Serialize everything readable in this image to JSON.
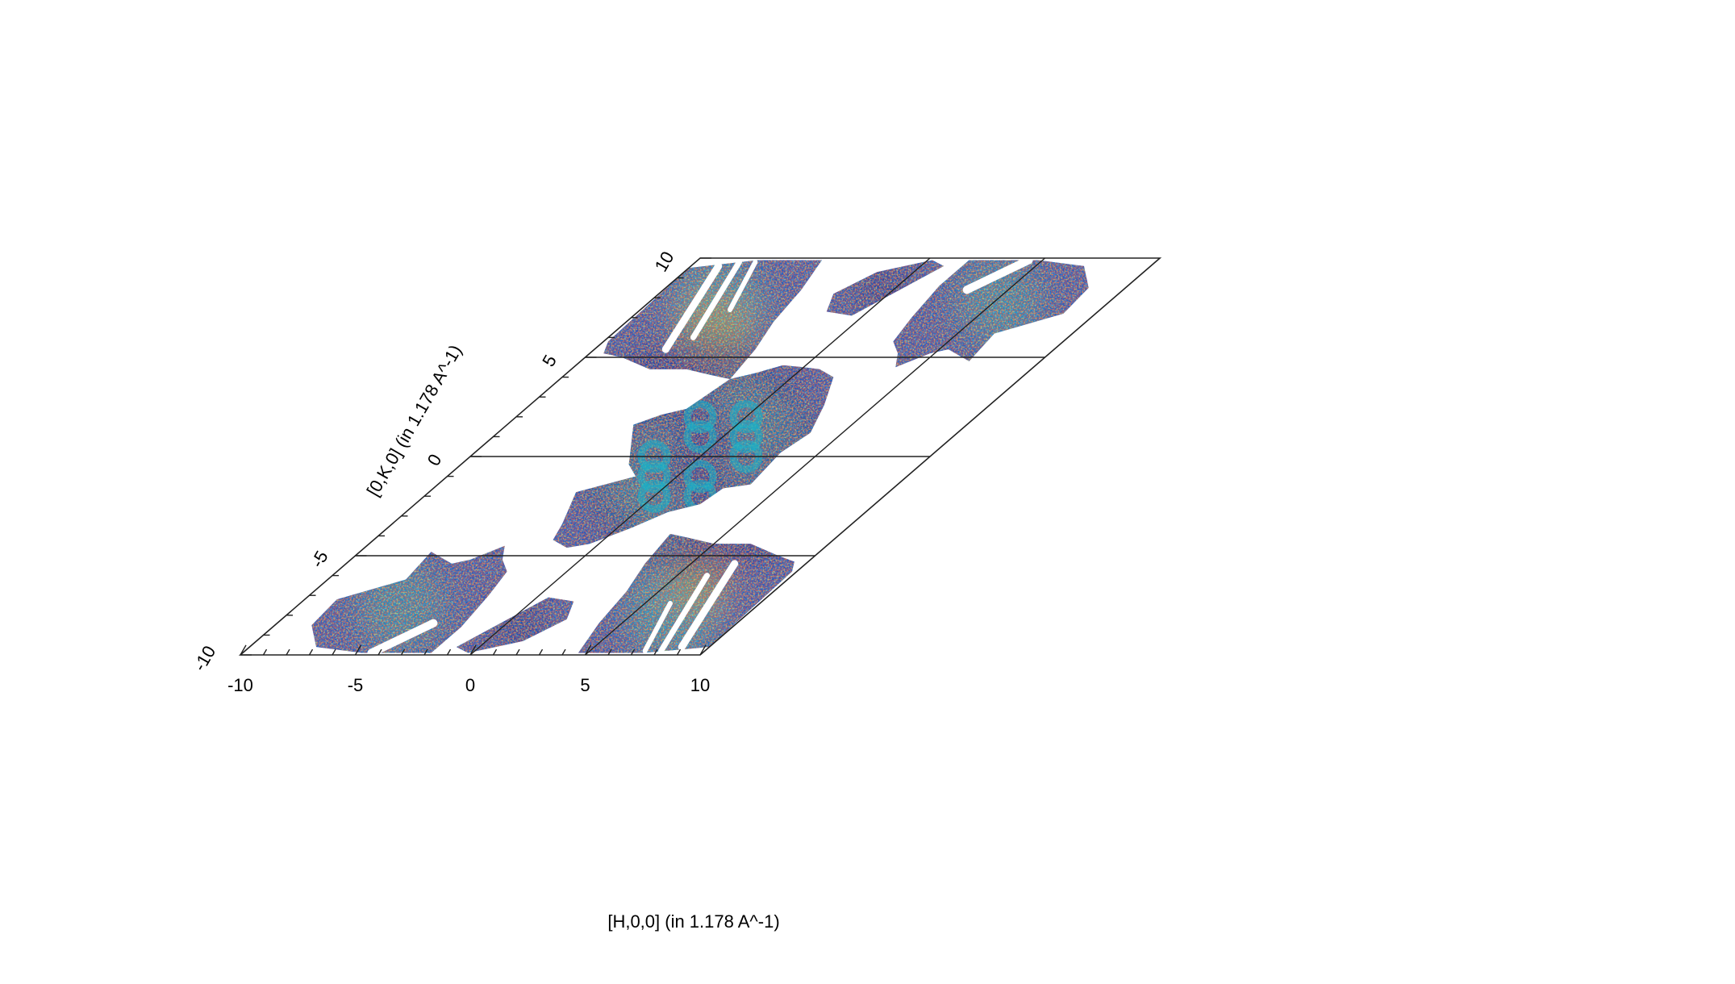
{
  "chart_data": {
    "type": "heatmap",
    "title": "",
    "xlabel": "[H,0,0] (in 1.178 A^-1)",
    "ylabel": "[0,K,0] (in 1.178 A^-1)",
    "xlim": [
      -10,
      10
    ],
    "ylim": [
      -10,
      10
    ],
    "x_ticks": [
      "-10",
      "-5",
      "0",
      "5",
      "10"
    ],
    "y_ticks": [
      "-10",
      "-5",
      "0",
      "5",
      "10"
    ],
    "grid": true,
    "grid_lines_x": [
      0,
      5
    ],
    "grid_lines_y": [
      -5,
      0,
      5
    ],
    "lattice": "hexagonal (oblique axes, 60 degrees)",
    "colormap": "jet",
    "colors": {
      "low": "#08309a",
      "background_blue": "#1e5fc8",
      "mid": "#19b4c8",
      "high": "#e8d21e",
      "max": "#b41e1e",
      "no_data": "#ffffff"
    }
  }
}
